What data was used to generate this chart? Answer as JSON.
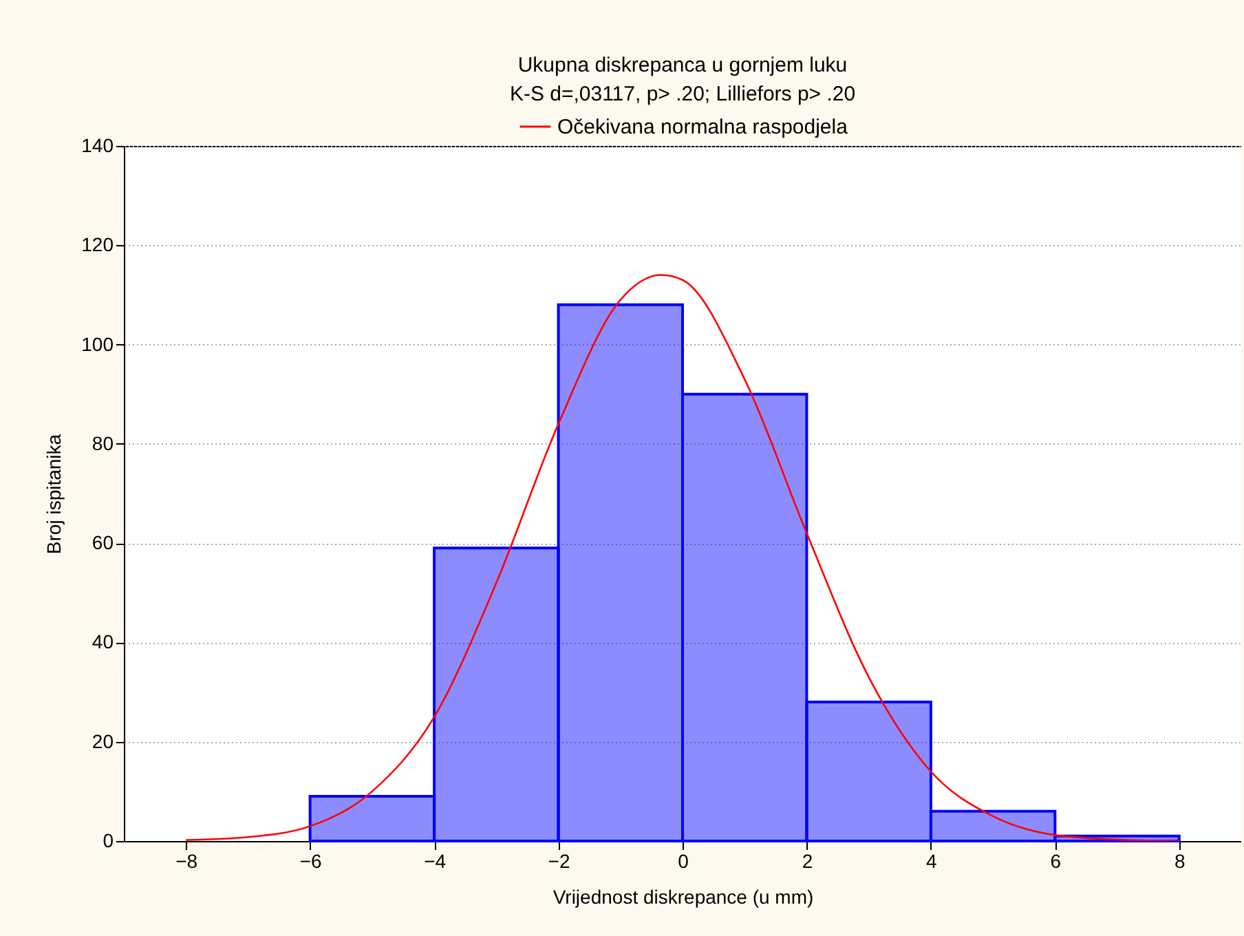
{
  "chart_data": {
    "type": "histogram",
    "title": "Ukupna diskrepanca u gornjem luku",
    "subtitle": "K-S d=,03117, p> .20; Lilliefors p> .20",
    "xlabel": "Vrijednost diskrepance (u mm)",
    "ylabel": "Broj ispitanika",
    "bins": [
      -6,
      -4,
      -2,
      0,
      2,
      4,
      6,
      8
    ],
    "values": [
      9,
      59,
      108,
      90,
      28,
      6,
      1
    ],
    "color": "#0000ff",
    "series": [
      {
        "type": "line",
        "name": "Očekivana normalna raspodjela",
        "color": "#ff0000",
        "x": [
          -8,
          -7,
          -6,
          -5,
          -4,
          -3,
          -2,
          -1,
          -0.35,
          0,
          1,
          2,
          3,
          4,
          5,
          6,
          7,
          8
        ],
        "values": [
          0.2,
          0.8,
          3,
          10,
          25,
          52,
          84,
          109,
          114,
          113,
          93,
          62,
          33,
          14,
          5,
          1.2,
          0.3,
          0
        ]
      }
    ],
    "xlim": [
      -9,
      9
    ],
    "xticks": [
      -8,
      -6,
      -4,
      -2,
      0,
      2,
      4,
      6,
      8
    ],
    "ylim": [
      0,
      140
    ],
    "yticks": [
      0,
      20,
      40,
      60,
      80,
      100,
      120,
      140
    ],
    "grid": "y",
    "legend": "top"
  }
}
